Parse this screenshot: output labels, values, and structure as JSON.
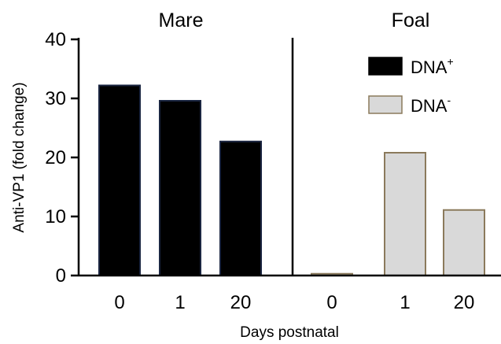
{
  "chart_data": {
    "type": "bar",
    "ylabel": "Anti-VP1 (fold change)",
    "xlabel": "Days postnatal",
    "ylim": [
      0,
      40
    ],
    "yticks": [
      0,
      10,
      20,
      30,
      40
    ],
    "legend_position": "top-right",
    "panels": [
      {
        "title": "Mare",
        "categories": [
          "0",
          "1",
          "20"
        ],
        "series": "DNA+",
        "values": [
          32.2,
          29.6,
          22.7
        ]
      },
      {
        "title": "Foal",
        "categories": [
          "0",
          "1",
          "20"
        ],
        "series": "DNA-",
        "values": [
          0.3,
          20.8,
          11.1
        ]
      }
    ],
    "legend": [
      {
        "key": "DNA+",
        "base": "DNA",
        "sup": "+",
        "fill": "#000000",
        "stroke": "#000000"
      },
      {
        "key": "DNA-",
        "base": "DNA",
        "sup": "-",
        "fill": "#d9d9d9",
        "stroke": "#8b7a5c"
      }
    ]
  }
}
